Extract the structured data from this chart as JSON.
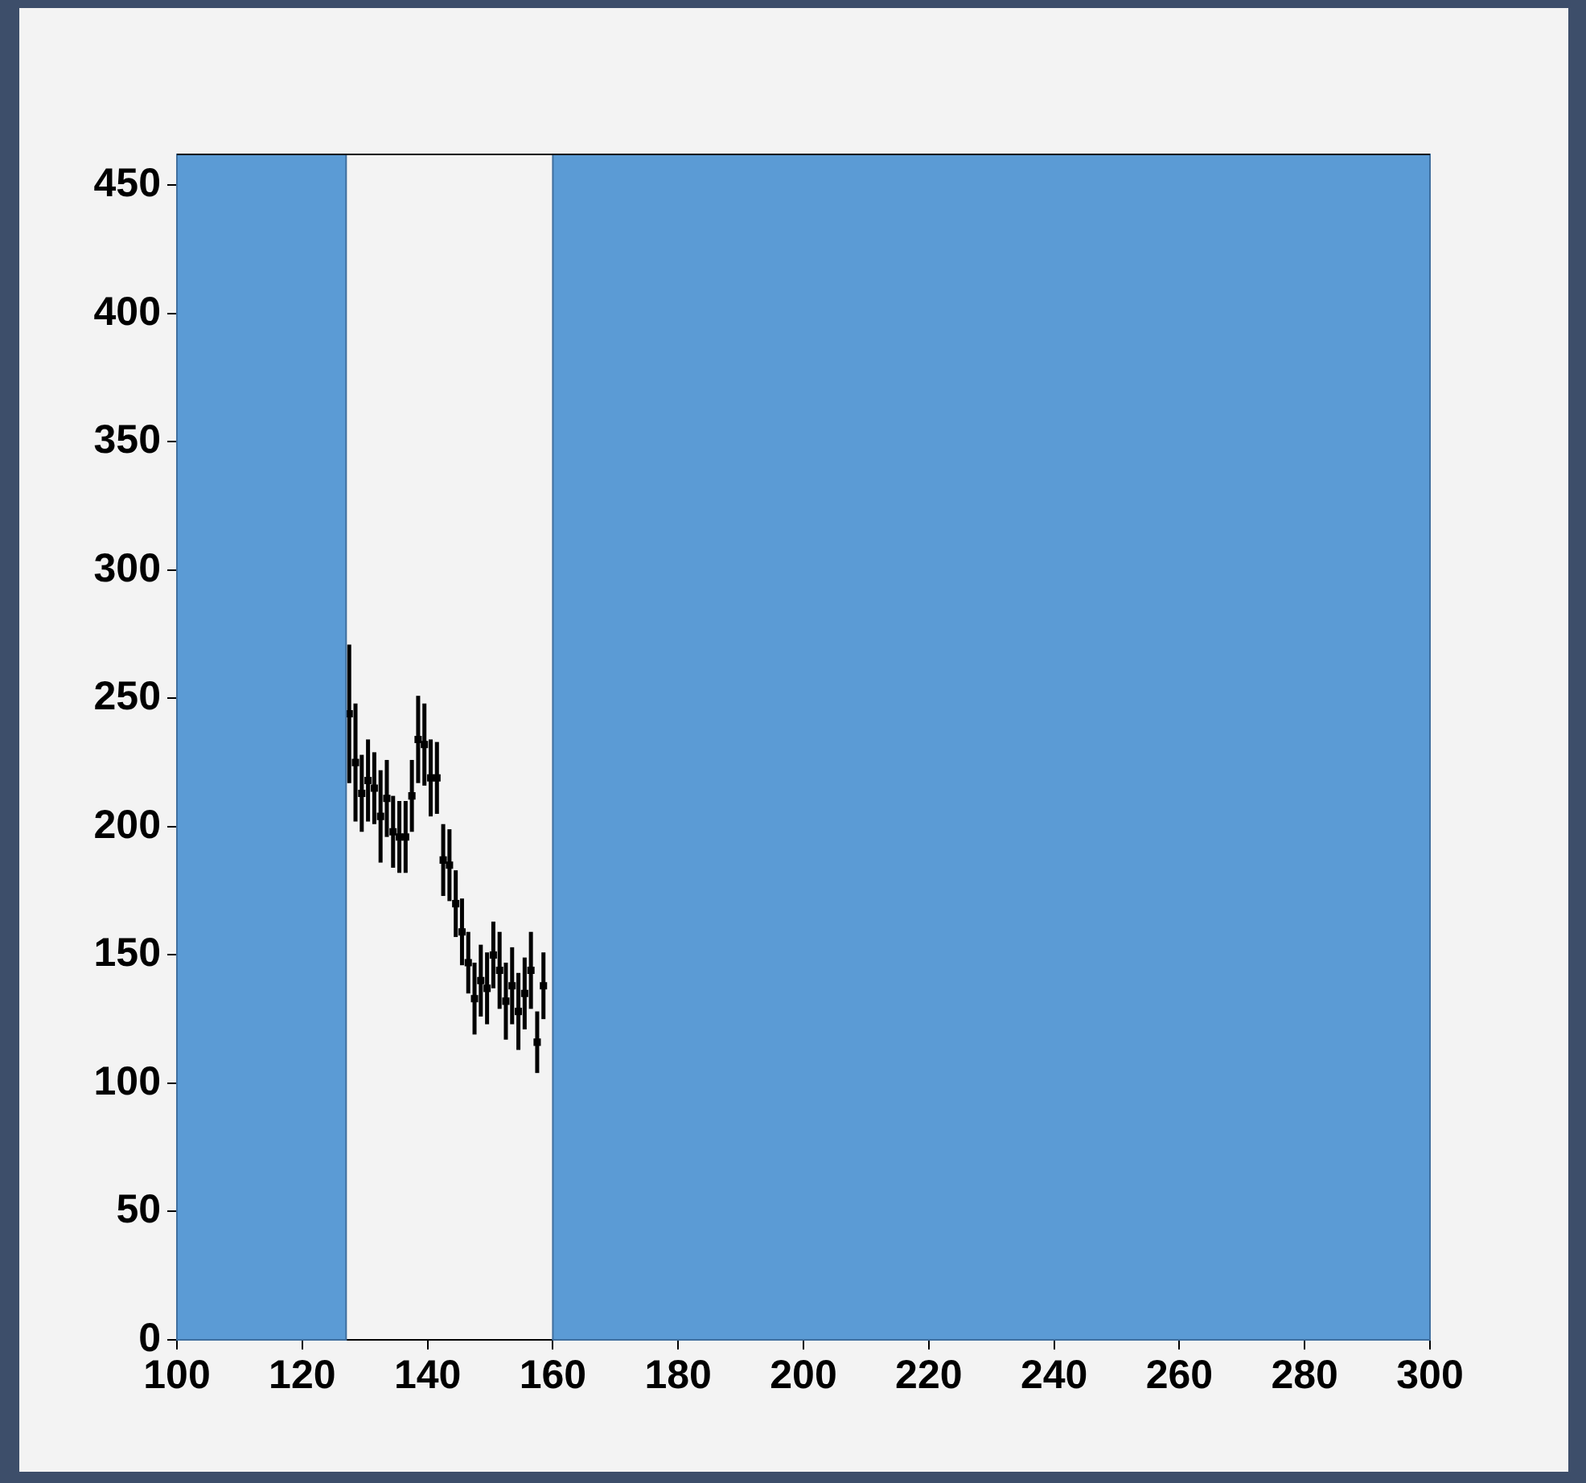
{
  "chart_data": {
    "type": "scatter",
    "marker": "square",
    "grid": false,
    "legend": false,
    "x": [
      127.5,
      128.5,
      129.5,
      130.5,
      131.5,
      132.5,
      133.5,
      134.5,
      135.5,
      136.5,
      137.5,
      138.5,
      139.5,
      140.5,
      141.5,
      142.5,
      143.5,
      144.5,
      145.5,
      146.5,
      147.5,
      148.5,
      149.5,
      150.5,
      151.5,
      152.5,
      153.5,
      154.5,
      155.5,
      156.5,
      157.5,
      158.5
    ],
    "values": [
      244,
      225,
      213,
      218,
      215,
      204,
      211,
      198,
      196,
      196,
      212,
      234,
      232,
      219,
      219,
      187,
      185,
      170,
      159,
      147,
      133,
      140,
      137,
      150,
      144,
      132,
      138,
      128,
      135,
      144,
      116,
      138
    ],
    "errors": [
      27,
      23,
      15,
      16,
      14,
      18,
      15,
      14,
      14,
      14,
      14,
      17,
      16,
      15,
      14,
      14,
      14,
      13,
      13,
      12,
      14,
      14,
      14,
      13,
      15,
      15,
      15,
      15,
      14,
      15,
      12,
      13
    ],
    "color": "#000000",
    "xlim": [
      100,
      300
    ],
    "xticks": [
      100,
      120,
      140,
      160,
      180,
      200,
      220,
      240,
      260,
      280,
      300
    ],
    "ylim": [
      0,
      462
    ],
    "yticks": [
      0,
      50,
      100,
      150,
      200,
      250,
      300,
      350,
      400,
      450
    ],
    "bands": [
      {
        "axis": "x",
        "from": 100,
        "to": 127,
        "color": "#5b9bd5"
      },
      {
        "axis": "x",
        "from": 160,
        "to": 300,
        "color": "#5b9bd5"
      }
    ]
  }
}
